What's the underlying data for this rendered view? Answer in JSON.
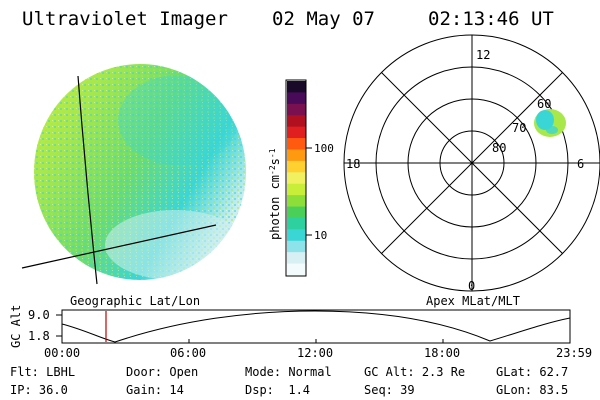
{
  "header": {
    "instrument": "Ultraviolet Imager",
    "date": "02 May 07",
    "time": "02:13:46 UT"
  },
  "image_panel": {
    "label": "Geographic Lat/Lon",
    "colors": {
      "green": "#a8e84a",
      "yellow_green": "#c8ee3a",
      "cyan": "#3ad6d6",
      "pale": "#cdeef0"
    }
  },
  "colorbar": {
    "unit_label": "photon cm",
    "unit_exp1": "-2",
    "unit_mid": "s",
    "unit_exp2": "-1",
    "tick_100": "100",
    "tick_10": "10",
    "scale": "log",
    "colors": [
      "#1a0a2a",
      "#4a0a5a",
      "#7a1050",
      "#b01020",
      "#e02020",
      "#ff5a10",
      "#ff9a10",
      "#ffd030",
      "#f0f060",
      "#c8ee3a",
      "#8ede3a",
      "#4ad058",
      "#2ed0a0",
      "#3ad6d6",
      "#8ee2ea",
      "#d8f0f4",
      "#f4fbfc"
    ]
  },
  "polar_plot": {
    "label": "Apex MLat/MLT",
    "mlt_12": "12",
    "mlt_18": "18",
    "mlt_6": "6",
    "mlt_0": "0",
    "lat_60": "60",
    "lat_70": "70",
    "lat_80": "80"
  },
  "altitude_plot": {
    "ylabel": "GC Alt",
    "ytick_top": "9.0",
    "ytick_bottom": "1.8",
    "xticks": [
      "00:00",
      "06:00",
      "12:00",
      "18:00",
      "23:59"
    ],
    "marker_color": "#c00000"
  },
  "status": {
    "flt_label": "Flt:",
    "flt_value": "LBHL",
    "ip_label": "IP:",
    "ip_value": "36.0",
    "door_label": "Door:",
    "door_value": "Open",
    "gain_label": "Gain:",
    "gain_value": "14",
    "mode_label": "Mode:",
    "mode_value": "Normal",
    "dsp_label": "Dsp:",
    "dsp_value": "1.4",
    "gcalt_label": "GC Alt:",
    "gcalt_value": "2.3 Re",
    "seq_label": "Seq:",
    "seq_value": "39",
    "glat_label": "GLat:",
    "glat_value": "62.7",
    "glon_label": "GLon:",
    "glon_value": "83.5"
  }
}
